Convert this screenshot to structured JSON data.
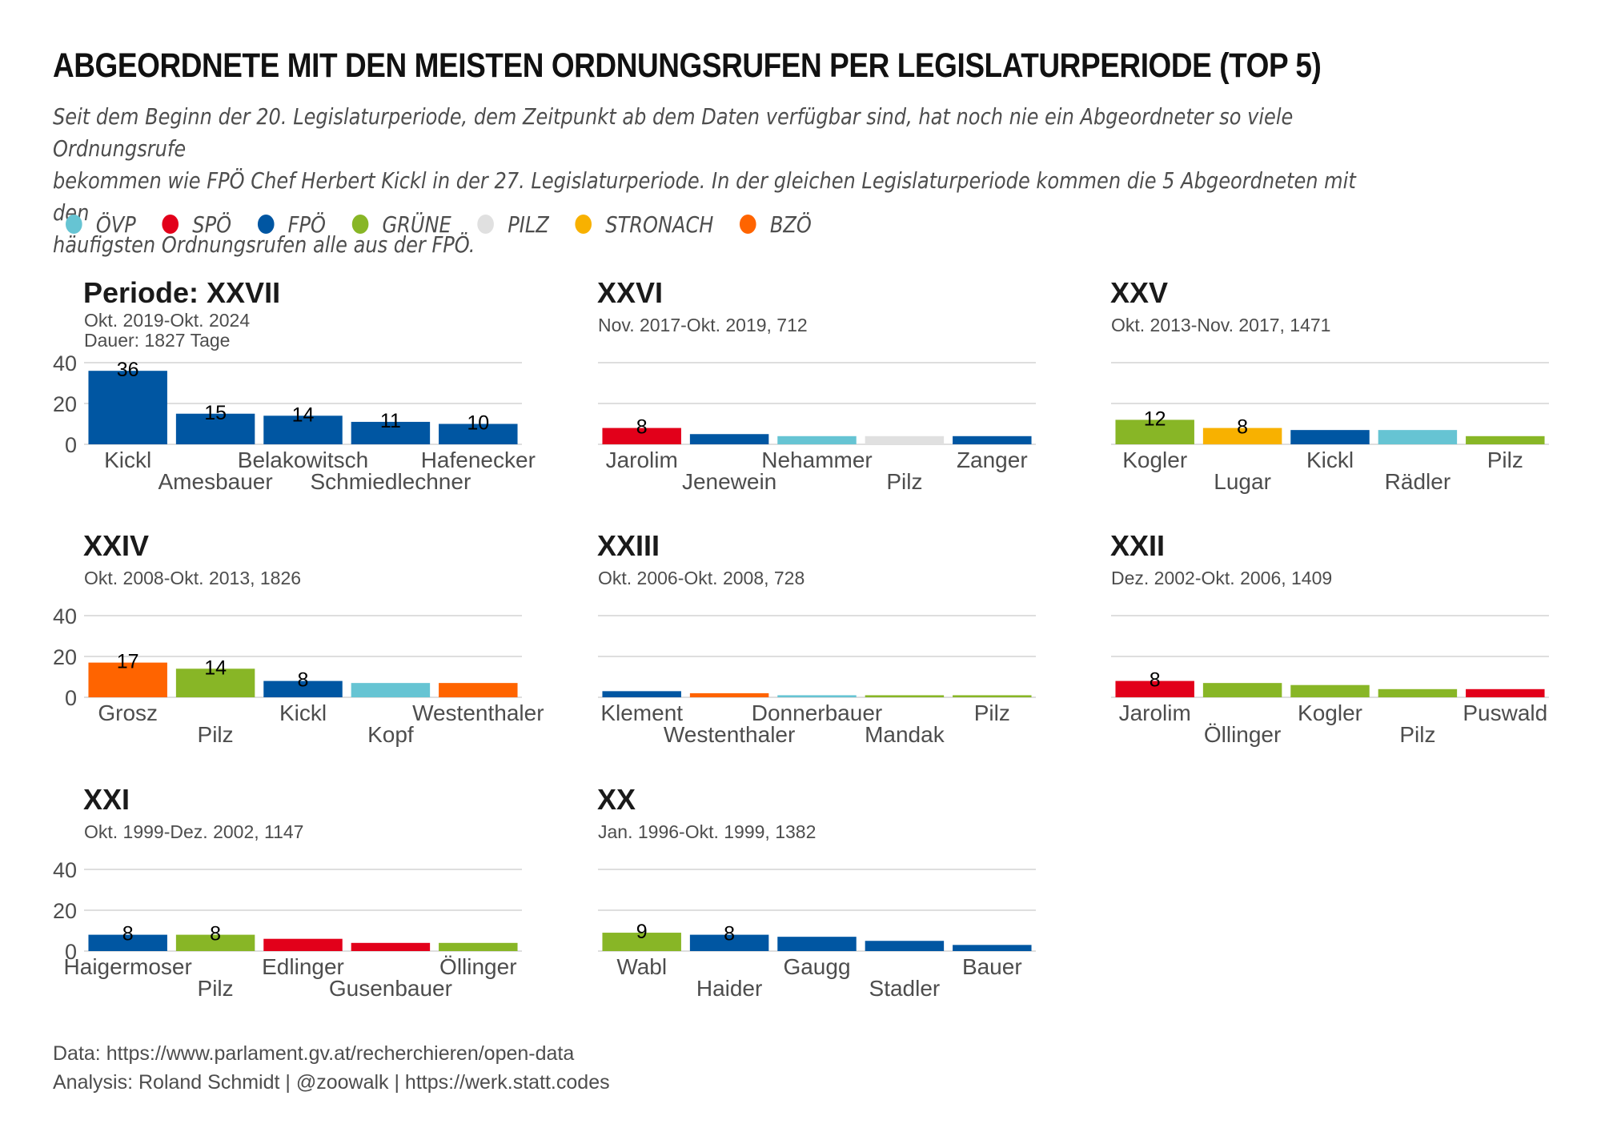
{
  "title": "ABGEORDNETE MIT DEN MEISTEN ORDNUNGSRUFEN PER LEGISLATURPERIODE (TOP 5)",
  "subtitle_lines": [
    "Seit dem Beginn der 20. Legislaturperiode, dem Zeitpunkt ab dem Daten verfügbar sind, hat noch nie ein Abgeordneter so viele Ordnungsrufe",
    "bekommen wie FPÖ Chef Herbert Kickl in der 27. Legislaturperiode. In der gleichen Legislaturperiode kommen die 5 Abgeordneten mit den",
    "häufigsten Ordnungsrufen alle aus der FPÖ."
  ],
  "legend": [
    {
      "label": "ÖVP",
      "color": "#66c4d3"
    },
    {
      "label": "SPÖ",
      "color": "#e2001a"
    },
    {
      "label": "FPÖ",
      "color": "#0056a2"
    },
    {
      "label": "GRÜNE",
      "color": "#88b626"
    },
    {
      "label": "PILZ",
      "color": "#e0e0e0"
    },
    {
      "label": "STRONACH",
      "color": "#f8b100"
    },
    {
      "label": "BZÖ",
      "color": "#ff6400"
    }
  ],
  "caption": {
    "data": "Data: https://www.parlament.gv.at/recherchieren/open-data",
    "analysis": "Analysis: Roland Schmidt | @zoowalk | https://werk.statt.codes"
  },
  "chart_data": [
    {
      "type": "bar",
      "title": "Periode: XXVII",
      "subtitle_lines": [
        "Okt. 2019-Okt. 2024",
        "Dauer: 1827 Tage"
      ],
      "categories": [
        "Kickl",
        "Amesbauer",
        "Belakowitsch",
        "Schmiedlechner",
        "Hafenecker"
      ],
      "values": [
        36,
        15,
        14,
        11,
        10
      ],
      "parties": [
        "FPÖ",
        "FPÖ",
        "FPÖ",
        "FPÖ",
        "FPÖ"
      ],
      "labels": [
        "36",
        "15",
        "14",
        "11",
        "10"
      ],
      "yticks": [
        "0",
        "20",
        "40"
      ],
      "ylim": [
        0,
        40
      ],
      "show_yticks": true,
      "grid": true
    },
    {
      "type": "bar",
      "title": "XXVI",
      "subtitle_lines": [
        "Nov. 2017-Okt. 2019, 712"
      ],
      "categories": [
        "Jarolim",
        "Jenewein",
        "Nehammer",
        "Pilz",
        "Zanger"
      ],
      "values": [
        8,
        5,
        4,
        4,
        4
      ],
      "parties": [
        "SPÖ",
        "FPÖ",
        "ÖVP",
        "PILZ",
        "FPÖ"
      ],
      "labels": [
        "8",
        "",
        "",
        "",
        ""
      ],
      "yticks": [
        "0",
        "20",
        "40"
      ],
      "ylim": [
        0,
        40
      ],
      "show_yticks": false,
      "grid": true
    },
    {
      "type": "bar",
      "title": "XXV",
      "subtitle_lines": [
        "Okt. 2013-Nov. 2017, 1471"
      ],
      "categories": [
        "Kogler",
        "Lugar",
        "Kickl",
        "Rädler",
        "Pilz"
      ],
      "values": [
        12,
        8,
        7,
        7,
        4
      ],
      "parties": [
        "GRÜNE",
        "STRONACH",
        "FPÖ",
        "ÖVP",
        "GRÜNE"
      ],
      "labels": [
        "12",
        "8",
        "",
        "",
        ""
      ],
      "yticks": [
        "0",
        "20",
        "40"
      ],
      "ylim": [
        0,
        40
      ],
      "show_yticks": false,
      "grid": true
    },
    {
      "type": "bar",
      "title": "XXIV",
      "subtitle_lines": [
        "Okt. 2008-Okt. 2013, 1826"
      ],
      "categories": [
        "Grosz",
        "Pilz",
        "Kickl",
        "Kopf",
        "Westenthaler"
      ],
      "values": [
        17,
        14,
        8,
        7,
        7
      ],
      "parties": [
        "BZÖ",
        "GRÜNE",
        "FPÖ",
        "ÖVP",
        "BZÖ"
      ],
      "labels": [
        "17",
        "14",
        "8",
        "",
        ""
      ],
      "yticks": [
        "0",
        "20",
        "40"
      ],
      "ylim": [
        0,
        40
      ],
      "show_yticks": true,
      "grid": true
    },
    {
      "type": "bar",
      "title": "XXIII",
      "subtitle_lines": [
        "Okt. 2006-Okt. 2008, 728"
      ],
      "categories": [
        "Klement",
        "Westenthaler",
        "Donnerbauer",
        "Mandak",
        "Pilz"
      ],
      "values": [
        3,
        2,
        1,
        1,
        1
      ],
      "parties": [
        "FPÖ",
        "BZÖ",
        "ÖVP",
        "GRÜNE",
        "GRÜNE"
      ],
      "labels": [
        "",
        "",
        "",
        "",
        ""
      ],
      "yticks": [
        "0",
        "20",
        "40"
      ],
      "ylim": [
        0,
        40
      ],
      "show_yticks": false,
      "grid": true
    },
    {
      "type": "bar",
      "title": "XXII",
      "subtitle_lines": [
        "Dez. 2002-Okt. 2006, 1409"
      ],
      "categories": [
        "Jarolim",
        "Öllinger",
        "Kogler",
        "Pilz",
        "Puswald"
      ],
      "values": [
        8,
        7,
        6,
        4,
        4
      ],
      "parties": [
        "SPÖ",
        "GRÜNE",
        "GRÜNE",
        "GRÜNE",
        "SPÖ"
      ],
      "labels": [
        "8",
        "",
        "",
        "",
        ""
      ],
      "yticks": [
        "0",
        "20",
        "40"
      ],
      "ylim": [
        0,
        40
      ],
      "show_yticks": false,
      "grid": true
    },
    {
      "type": "bar",
      "title": "XXI",
      "subtitle_lines": [
        "Okt. 1999-Dez. 2002, 1147"
      ],
      "categories": [
        "Haigermoser",
        "Pilz",
        "Edlinger",
        "Gusenbauer",
        "Öllinger"
      ],
      "values": [
        8,
        8,
        6,
        4,
        4
      ],
      "parties": [
        "FPÖ",
        "GRÜNE",
        "SPÖ",
        "SPÖ",
        "GRÜNE"
      ],
      "labels": [
        "8",
        "8",
        "",
        "",
        ""
      ],
      "yticks": [
        "0",
        "20",
        "40"
      ],
      "ylim": [
        0,
        40
      ],
      "show_yticks": true,
      "grid": true
    },
    {
      "type": "bar",
      "title": "XX",
      "subtitle_lines": [
        "Jan. 1996-Okt. 1999, 1382"
      ],
      "categories": [
        "Wabl",
        "Haider",
        "Gaugg",
        "Stadler",
        "Bauer"
      ],
      "values": [
        9,
        8,
        7,
        5,
        3
      ],
      "parties": [
        "GRÜNE",
        "FPÖ",
        "FPÖ",
        "FPÖ",
        "FPÖ"
      ],
      "labels": [
        "9",
        "8",
        "",
        "",
        ""
      ],
      "yticks": [
        "0",
        "20",
        "40"
      ],
      "ylim": [
        0,
        40
      ],
      "show_yticks": false,
      "grid": true
    }
  ]
}
